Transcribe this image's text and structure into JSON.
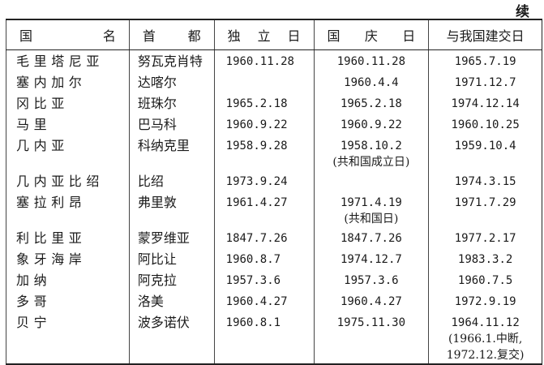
{
  "continued_label": "续",
  "columns": [
    "国名",
    "首都",
    "独立日",
    "国庆日",
    "与我国建交日"
  ],
  "rows": [
    {
      "country": "毛里塔尼亚",
      "capital": "努瓦克肖特",
      "independence": "1960.11.28",
      "national_day": "1960.11.28",
      "national_day_note": "",
      "relations": "1965.7.19",
      "relations_note": [
        "",
        ""
      ]
    },
    {
      "country": "塞内加尔",
      "capital": "达喀尔",
      "independence": "",
      "national_day": "1960.4.4",
      "national_day_note": "",
      "relations": "1971.12.7",
      "relations_note": [
        "",
        ""
      ]
    },
    {
      "country": "冈比亚",
      "capital": "班珠尔",
      "independence": "1965.2.18",
      "national_day": "1965.2.18",
      "national_day_note": "",
      "relations": "1974.12.14",
      "relations_note": [
        "",
        ""
      ]
    },
    {
      "country": "马里",
      "capital": "巴马科",
      "independence": "1960.9.22",
      "national_day": "1960.9.22",
      "national_day_note": "",
      "relations": "1960.10.25",
      "relations_note": [
        "",
        ""
      ]
    },
    {
      "country": "几内亚",
      "capital": "科纳克里",
      "independence": "1958.9.28",
      "national_day": "1958.10.2",
      "national_day_note": "(共和国成立日)",
      "relations": "1959.10.4",
      "relations_note": [
        "",
        ""
      ]
    },
    {
      "country": "几内亚比绍",
      "capital": "比绍",
      "independence": "1973.9.24",
      "national_day": "",
      "national_day_note": "",
      "relations": "1974.3.15",
      "relations_note": [
        "",
        ""
      ]
    },
    {
      "country": "塞拉利昂",
      "capital": "弗里敦",
      "independence": "1961.4.27",
      "national_day": "1971.4.19",
      "national_day_note": "(共和国日)",
      "relations": "1971.7.29",
      "relations_note": [
        "",
        ""
      ]
    },
    {
      "country": "利比里亚",
      "capital": "蒙罗维亚",
      "independence": "1847.7.26",
      "national_day": "1847.7.26",
      "national_day_note": "",
      "relations": "1977.2.17",
      "relations_note": [
        "",
        ""
      ]
    },
    {
      "country": "象牙海岸",
      "capital": "阿比让",
      "independence": "1960.8.7",
      "national_day": "1974.12.7",
      "national_day_note": "",
      "relations": "1983.3.2",
      "relations_note": [
        "",
        ""
      ]
    },
    {
      "country": "加纳",
      "capital": "阿克拉",
      "independence": "1957.3.6",
      "national_day": "1957.3.6",
      "national_day_note": "",
      "relations": "1960.7.5",
      "relations_note": [
        "",
        ""
      ]
    },
    {
      "country": "多哥",
      "capital": "洛美",
      "independence": "1960.4.27",
      "national_day": "1960.4.27",
      "national_day_note": "",
      "relations": "1972.9.19",
      "relations_note": [
        "",
        ""
      ]
    },
    {
      "country": "贝宁",
      "capital": "波多诺伏",
      "independence": "1960.8.1",
      "national_day": "1975.11.30",
      "national_day_note": "",
      "relations": "1964.11.12",
      "relations_note": [
        "(1966.1.中断,",
        "1972.12.复交)"
      ]
    }
  ]
}
